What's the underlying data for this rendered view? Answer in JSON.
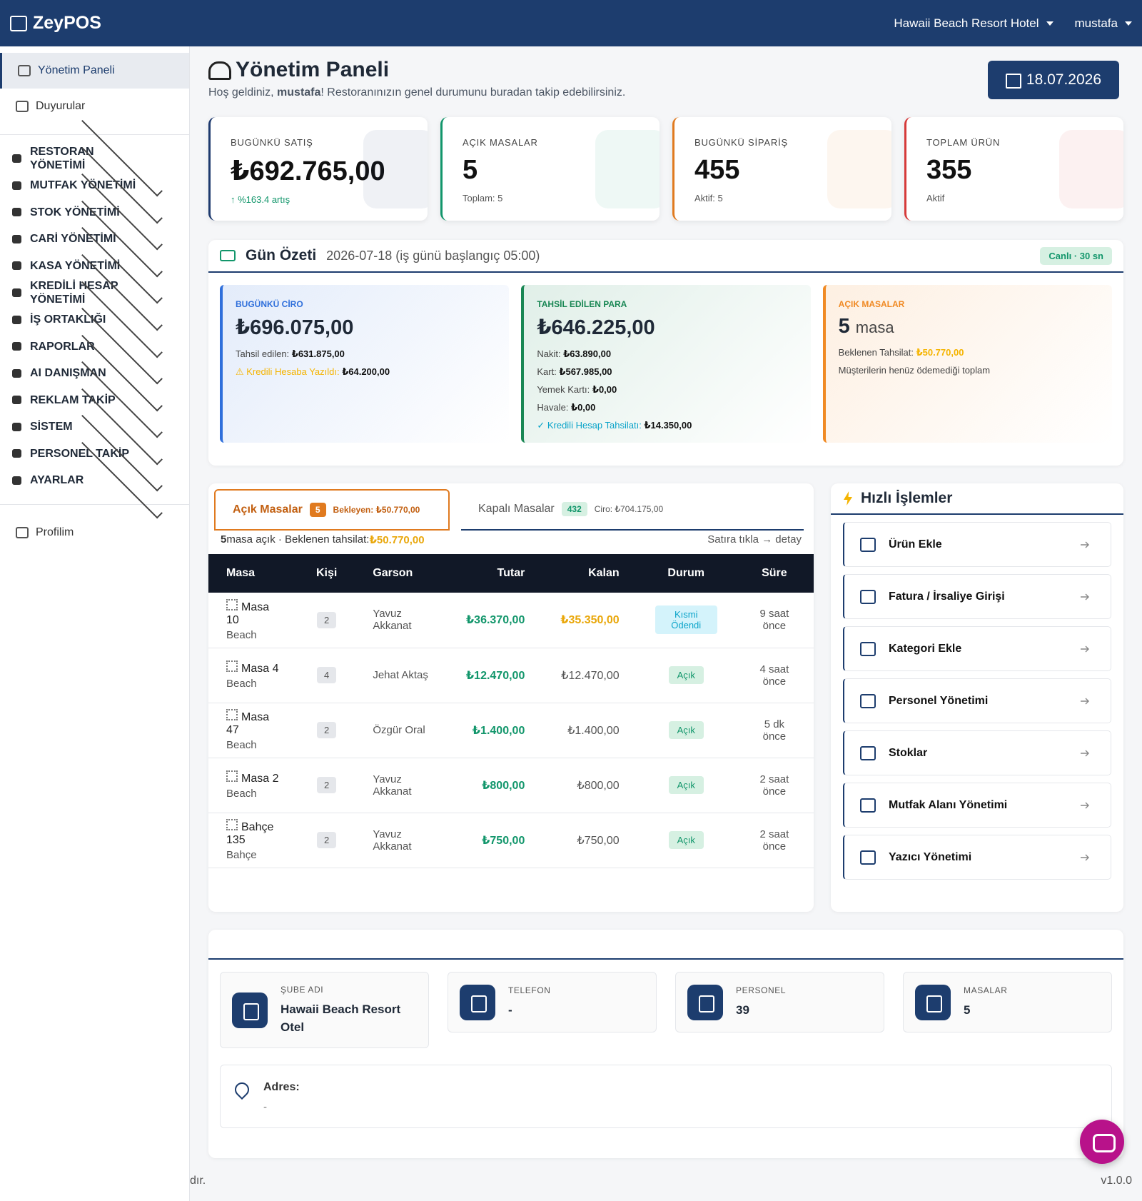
{
  "header": {
    "brand": "ZeyPOS",
    "hotel": "Hawaii Beach Resort Hotel",
    "user": "mustafa"
  },
  "sidebar": {
    "top": [
      "Yönetim Paneli",
      "Duyurular"
    ],
    "sections": [
      "RESTORAN YÖNETİMİ",
      "MUTFAK YÖNETİMİ",
      "STOK YÖNETİMİ",
      "CARİ YÖNETİMİ",
      "KASA YÖNETİMİ",
      "KREDİLİ HESAP YÖNETİMİ",
      "İŞ ORTAKLIĞI",
      "RAPORLAR",
      "AI DANIŞMAN",
      "REKLAM TAKİP",
      "SİSTEM",
      "PERSONEL TAKİP",
      "AYARLAR"
    ],
    "profile": "Profilim"
  },
  "page": {
    "title": "Yönetim Paneli",
    "greeting_before": "Hoş geldiniz, ",
    "greeting_name": "mustafa",
    "greeting_after": "! Restoranınızın genel durumunu buradan takip edebilirsiniz.",
    "date": "18.07.2026"
  },
  "stats": [
    {
      "label": "BUGÜNKÜ SATIŞ",
      "value": "₺692.765,00",
      "note": "↑ %163.4 artış",
      "color": "#1e3a6e"
    },
    {
      "label": "AÇIK MASALAR",
      "value": "5",
      "note": "Toplam: 5",
      "color": "#12966b"
    },
    {
      "label": "BUGÜNKÜ SİPARİŞ",
      "value": "455",
      "note": "Aktif: 5",
      "color": "#e07a1f"
    },
    {
      "label": "TOPLAM ÜRÜN",
      "value": "355",
      "note": "Aktif",
      "color": "#d63a3a"
    }
  ],
  "summary": {
    "title": "Gün Özeti",
    "subtitle": "2026-07-18 (iş günü başlangıç 05:00)",
    "badge": "Canlı · 30 sn",
    "boxes": [
      {
        "label": "BUGÜNKÜ CİRO",
        "value": "₺696.075,00",
        "color": "#2f6fdb",
        "lines": [
          {
            "label": "Tahsil edilen:",
            "value": "₺631.875,00"
          },
          {
            "label": "⚠ Kredili Hesaba Yazıldı:",
            "value": "₺64.200,00"
          }
        ]
      },
      {
        "label": "TAHSİL EDİLEN PARA",
        "value": "₺646.225,00",
        "color": "#198754",
        "lines": [
          {
            "label": "Nakit:",
            "value": "₺63.890,00"
          },
          {
            "label": "Kart:",
            "value": "₺567.985,00"
          },
          {
            "label": "Yemek Kartı:",
            "value": "₺0,00"
          },
          {
            "label": "Havale:",
            "value": "₺0,00"
          },
          {
            "label": "✓ Kredili Hesap Tahsilatı:",
            "value": "₺14.350,00"
          }
        ]
      },
      {
        "label": "AÇIK MASALAR",
        "value": "5",
        "unit": "masa",
        "color": "#f08a24",
        "lines": [
          {
            "label": "Beklenen Tahsilat:",
            "value": "₺50.770,00"
          },
          {
            "label": "Müşterilerin henüz ödemediği toplam"
          }
        ]
      }
    ]
  },
  "tables": {
    "tabs": [
      {
        "label": "Açık Masalar",
        "count": "5",
        "extra": "Bekleyen: ₺50.770,00"
      },
      {
        "label": "Kapalı Masalar",
        "count": "432",
        "extra": "Ciro: ₺704.175,00"
      }
    ],
    "info_count": "5",
    "info_text": " masa açık · Beklenen tahsilat: ",
    "info_amount": "₺50.770,00",
    "hint": "Satıra tıkla → detay",
    "columns": [
      "Masa",
      "Kişi",
      "Garson",
      "Tutar",
      "Kalan",
      "Durum",
      "Süre"
    ],
    "rows": [
      [
        "Masa 10",
        "Beach",
        "2",
        "Yavuz Akkanat",
        "₺36.370,00",
        "₺35.350,00",
        "Kısmi Ödendi",
        "9 saat önce"
      ],
      [
        "Masa 4",
        "Beach",
        "4",
        "Jehat Aktaş",
        "₺12.470,00",
        "₺12.470,00",
        "Açık",
        "4 saat önce"
      ],
      [
        "Masa 47",
        "Beach",
        "2",
        "Özgür Oral",
        "₺1.400,00",
        "₺1.400,00",
        "Açık",
        "5 dk önce"
      ],
      [
        "Masa 2",
        "Beach",
        "2",
        "Yavuz Akkanat",
        "₺800,00",
        "₺800,00",
        "Açık",
        "2 saat önce"
      ],
      [
        "Bahçe 135",
        "Bahçe",
        "2",
        "Yavuz Akkanat",
        "₺750,00",
        "₺750,00",
        "Açık",
        "2 saat önce"
      ]
    ]
  },
  "quick": {
    "title": "Hızlı İşlemler",
    "items": [
      "Ürün Ekle",
      "Fatura / İrsaliye Girişi",
      "Kategori Ekle",
      "Personel Yönetimi",
      "Stoklar",
      "Mutfak Alanı Yönetimi",
      "Yazıcı Yönetimi"
    ]
  },
  "branch": {
    "cards": [
      {
        "label": "ŞUBE ADI",
        "value": "Hawaii Beach Resort Otel"
      },
      {
        "label": "TELEFON",
        "value": "-"
      },
      {
        "label": "PERSONEL",
        "value": "39"
      },
      {
        "label": "MASALAR",
        "value": "5"
      }
    ],
    "address_label": "Adres:",
    "address": "-"
  },
  "footer": {
    "left": "dır.",
    "version": "v1.0.0"
  }
}
